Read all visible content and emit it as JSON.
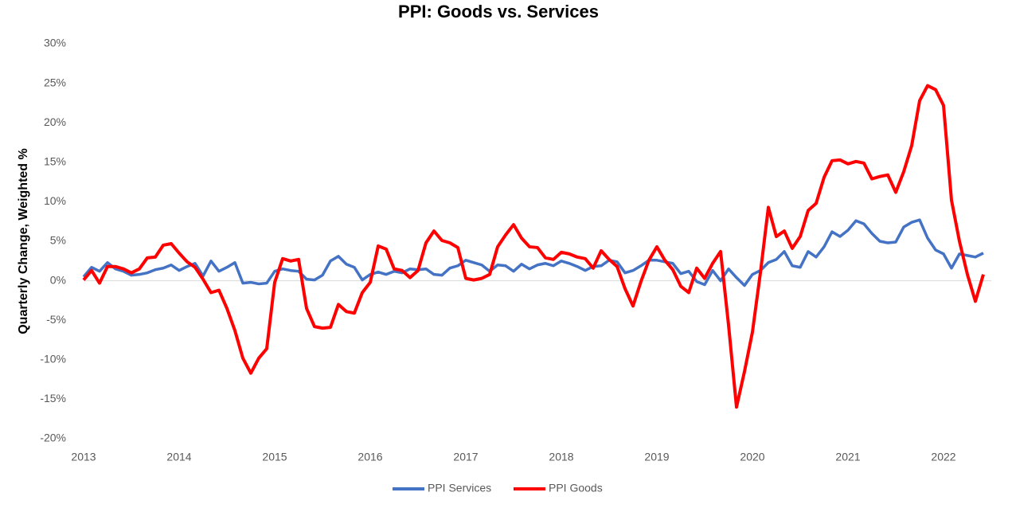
{
  "chart_data": {
    "type": "line",
    "title": "PPI: Goods vs. Services",
    "y_label": "Quarterly Change, Weighted %",
    "categories": [
      "2013",
      null,
      null,
      null,
      null,
      null,
      null,
      null,
      null,
      null,
      null,
      null,
      "2014",
      null,
      null,
      null,
      null,
      null,
      null,
      null,
      null,
      null,
      null,
      null,
      "2015",
      null,
      null,
      null,
      null,
      null,
      null,
      null,
      null,
      null,
      null,
      null,
      "2016",
      null,
      null,
      null,
      null,
      null,
      null,
      null,
      null,
      null,
      null,
      null,
      "2017",
      null,
      null,
      null,
      null,
      null,
      null,
      null,
      null,
      null,
      null,
      null,
      "2018",
      null,
      null,
      null,
      null,
      null,
      null,
      null,
      null,
      null,
      null,
      null,
      "2019",
      null,
      null,
      null,
      null,
      null,
      null,
      null,
      null,
      null,
      null,
      null,
      "2020",
      null,
      null,
      null,
      null,
      null,
      null,
      null,
      null,
      null,
      null,
      null,
      "2021",
      null,
      null,
      null,
      null,
      null,
      null,
      null,
      null,
      null,
      null,
      null,
      "2022",
      null,
      null,
      null,
      null,
      null
    ],
    "series": [
      {
        "name": "PPI Services",
        "color": "#4472c4",
        "values": [
          0.5,
          1.7,
          1.2,
          2.3,
          1.5,
          1.2,
          0.7,
          0.8,
          1.0,
          1.4,
          1.6,
          2.0,
          1.3,
          1.8,
          2.2,
          0.6,
          2.5,
          1.2,
          1.7,
          2.3,
          -0.3,
          -0.2,
          -0.4,
          -0.3,
          1.2,
          1.5,
          1.3,
          1.2,
          0.2,
          0.1,
          0.7,
          2.5,
          3.1,
          2.1,
          1.7,
          0.1,
          0.8,
          1.1,
          0.8,
          1.2,
          1.0,
          1.5,
          1.4,
          1.5,
          0.8,
          0.7,
          1.6,
          1.9,
          2.6,
          2.3,
          2.0,
          1.2,
          2.0,
          1.9,
          1.2,
          2.1,
          1.5,
          2.0,
          2.2,
          1.9,
          2.5,
          2.2,
          1.8,
          1.3,
          1.8,
          1.9,
          2.6,
          2.4,
          1.0,
          1.3,
          1.9,
          2.6,
          2.6,
          2.4,
          2.2,
          0.9,
          1.2,
          -0.1,
          -0.5,
          1.3,
          0.0,
          1.5,
          0.4,
          -0.6,
          0.8,
          1.3,
          2.3,
          2.7,
          3.7,
          1.9,
          1.7,
          3.7,
          3.0,
          4.3,
          6.2,
          5.6,
          6.4,
          7.6,
          7.2,
          6.0,
          5.0,
          4.8,
          4.9,
          6.8,
          7.4,
          7.7,
          5.4,
          3.9,
          3.4,
          1.6,
          3.4,
          3.2,
          3.0,
          3.5
        ]
      },
      {
        "name": "PPI Goods",
        "color": "#ff0000",
        "values": [
          0.1,
          1.3,
          -0.3,
          1.8,
          1.8,
          1.5,
          1.0,
          1.5,
          2.9,
          3.0,
          4.5,
          4.7,
          3.5,
          2.4,
          1.7,
          0.2,
          -1.5,
          -1.2,
          -3.5,
          -6.3,
          -9.8,
          -11.7,
          -9.8,
          -8.6,
          -0.2,
          2.8,
          2.5,
          2.7,
          -3.5,
          -5.8,
          -6.0,
          -5.9,
          -3.0,
          -3.9,
          -4.1,
          -1.5,
          -0.2,
          4.4,
          4.0,
          1.5,
          1.3,
          0.4,
          1.3,
          4.8,
          6.3,
          5.1,
          4.8,
          4.2,
          0.3,
          0.1,
          0.3,
          0.8,
          4.3,
          5.8,
          7.1,
          5.4,
          4.3,
          4.2,
          2.9,
          2.7,
          3.6,
          3.4,
          3.0,
          2.8,
          1.6,
          3.8,
          2.7,
          1.8,
          -1.0,
          -3.2,
          -0.1,
          2.6,
          4.3,
          2.6,
          1.4,
          -0.7,
          -1.5,
          1.6,
          0.3,
          2.2,
          3.7,
          -5.6,
          -16.0,
          -11.5,
          -6.5,
          1.0,
          9.3,
          5.6,
          6.3,
          4.1,
          5.6,
          8.9,
          9.8,
          13.1,
          15.2,
          15.3,
          14.8,
          15.1,
          14.9,
          12.9,
          13.2,
          13.4,
          11.2,
          13.8,
          17.1,
          22.8,
          24.7,
          24.2,
          22.2,
          10.2,
          5.0,
          0.8,
          -2.6,
          0.8
        ]
      }
    ],
    "ylim": [
      -20,
      30
    ],
    "yticks": [
      {
        "value": -20,
        "label": "-20%"
      },
      {
        "value": -15,
        "label": "-15%"
      },
      {
        "value": -10,
        "label": "-10%"
      },
      {
        "value": -5,
        "label": "-5%"
      },
      {
        "value": 0,
        "label": "0%"
      },
      {
        "value": 5,
        "label": "5%"
      },
      {
        "value": 10,
        "label": "10%"
      },
      {
        "value": 15,
        "label": "15%"
      },
      {
        "value": 20,
        "label": "20%"
      },
      {
        "value": 25,
        "label": "25%"
      },
      {
        "value": 30,
        "label": "30%"
      }
    ],
    "grid": false,
    "legend": "bottom"
  }
}
